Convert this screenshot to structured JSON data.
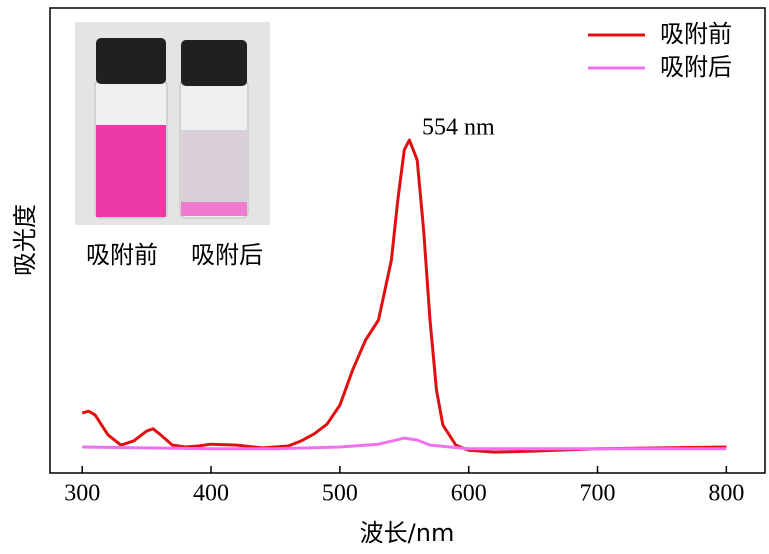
{
  "chart_data": {
    "type": "line",
    "x_label": "波长/nm",
    "y_label": "吸光度",
    "annotation": "554 nm",
    "photo_labels": [
      "吸附前",
      "吸附后"
    ],
    "xlim": [
      275,
      830
    ],
    "xticks": [
      300,
      400,
      500,
      600,
      700,
      800
    ],
    "ylim": [
      0,
      1
    ],
    "legend": "upper right",
    "series": [
      {
        "name": "吸附前",
        "color": "#e01010",
        "x": [
          300,
          305,
          310,
          320,
          330,
          340,
          350,
          355,
          360,
          370,
          380,
          390,
          400,
          420,
          440,
          460,
          470,
          480,
          490,
          500,
          510,
          520,
          530,
          540,
          545,
          550,
          554,
          560,
          565,
          570,
          575,
          580,
          590,
          600,
          620,
          650,
          700,
          750,
          800
        ],
        "values": [
          0.129,
          0.133,
          0.125,
          0.082,
          0.06,
          0.069,
          0.09,
          0.095,
          0.084,
          0.06,
          0.056,
          0.058,
          0.062,
          0.06,
          0.054,
          0.058,
          0.069,
          0.084,
          0.105,
          0.146,
          0.222,
          0.286,
          0.329,
          0.458,
          0.587,
          0.695,
          0.716,
          0.673,
          0.523,
          0.329,
          0.178,
          0.103,
          0.06,
          0.049,
          0.045,
          0.047,
          0.052,
          0.054,
          0.056
        ]
      },
      {
        "name": "吸附后",
        "color": "#f070f0",
        "x": [
          300,
          350,
          400,
          450,
          500,
          530,
          550,
          560,
          570,
          600,
          700,
          800
        ],
        "values": [
          0.056,
          0.054,
          0.052,
          0.052,
          0.056,
          0.062,
          0.075,
          0.071,
          0.06,
          0.052,
          0.052,
          0.052
        ]
      }
    ]
  }
}
